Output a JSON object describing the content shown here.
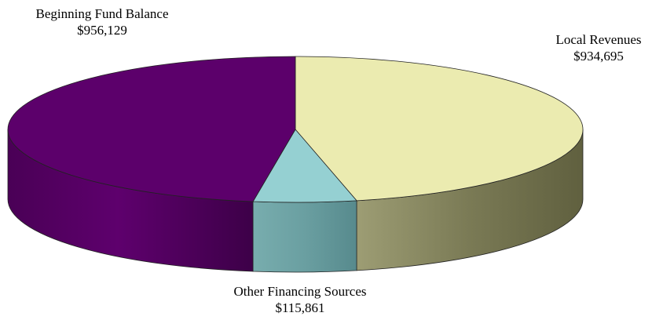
{
  "chart_data": {
    "type": "pie",
    "style": "3d-exploded",
    "slices": [
      {
        "label": "Beginning Fund Balance",
        "value": 956129,
        "display": "$956,129",
        "color": "#5c006b"
      },
      {
        "label": "Local Revenues",
        "value": 934695,
        "display": "$934,695",
        "color": "#ebebb0"
      },
      {
        "label": "Other Financing Sources",
        "value": 115861,
        "display": "$115,861",
        "color": "#95d0d2"
      }
    ]
  }
}
